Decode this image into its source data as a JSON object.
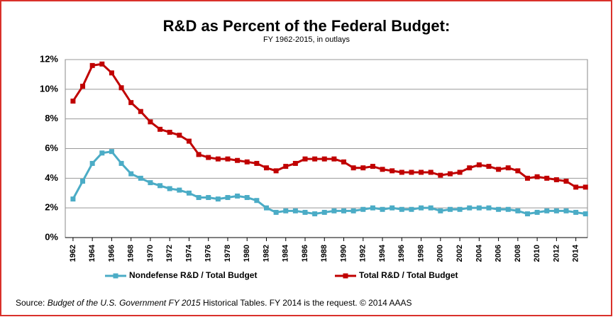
{
  "chart_data": {
    "type": "line",
    "title": "R&D as Percent of the Federal Budget:",
    "subtitle": "FY 1962-2015, in outlays",
    "source": {
      "prefix": "Source:",
      "title": "Budget of the U.S. Government FY 2015",
      "suffix": "Historical Tables. FY 2014 is the request. © 2014 AAAS"
    },
    "x": [
      1962,
      1963,
      1964,
      1965,
      1966,
      1967,
      1968,
      1969,
      1970,
      1971,
      1972,
      1973,
      1974,
      1975,
      1976,
      1977,
      1978,
      1979,
      1980,
      1981,
      1982,
      1983,
      1984,
      1985,
      1986,
      1987,
      1988,
      1989,
      1990,
      1991,
      1992,
      1993,
      1994,
      1995,
      1996,
      1997,
      1998,
      1999,
      2000,
      2001,
      2002,
      2003,
      2004,
      2005,
      2006,
      2007,
      2008,
      2009,
      2010,
      2011,
      2012,
      2013,
      2014,
      2015
    ],
    "series": [
      {
        "name": "Nondefense R&D / Total Budget",
        "color": "#4bacc6",
        "values": [
          2.6,
          3.8,
          5.0,
          5.7,
          5.8,
          5.0,
          4.3,
          4.0,
          3.7,
          3.5,
          3.3,
          3.2,
          3.0,
          2.7,
          2.7,
          2.6,
          2.7,
          2.8,
          2.7,
          2.5,
          2.0,
          1.7,
          1.8,
          1.8,
          1.7,
          1.6,
          1.7,
          1.8,
          1.8,
          1.8,
          1.9,
          2.0,
          1.9,
          2.0,
          1.9,
          1.9,
          2.0,
          2.0,
          1.8,
          1.9,
          1.9,
          2.0,
          2.0,
          2.0,
          1.9,
          1.9,
          1.8,
          1.6,
          1.7,
          1.8,
          1.8,
          1.8,
          1.7,
          1.6
        ]
      },
      {
        "name": "Total R&D / Total Budget",
        "color": "#c00000",
        "values": [
          9.2,
          10.2,
          11.6,
          11.7,
          11.1,
          10.1,
          9.1,
          8.5,
          7.8,
          7.3,
          7.1,
          6.9,
          6.5,
          5.6,
          5.4,
          5.3,
          5.3,
          5.2,
          5.1,
          5.0,
          4.7,
          4.5,
          4.8,
          5.0,
          5.3,
          5.3,
          5.3,
          5.3,
          5.1,
          4.7,
          4.7,
          4.8,
          4.6,
          4.5,
          4.4,
          4.4,
          4.4,
          4.4,
          4.2,
          4.3,
          4.4,
          4.7,
          4.9,
          4.8,
          4.6,
          4.7,
          4.5,
          4.0,
          4.1,
          4.0,
          3.9,
          3.8,
          3.4,
          3.4
        ]
      }
    ],
    "xlim": [
      1961.2,
      2015.2
    ],
    "xticks": [
      1962,
      1964,
      1966,
      1968,
      1970,
      1972,
      1974,
      1976,
      1978,
      1980,
      1982,
      1984,
      1986,
      1988,
      1990,
      1992,
      1994,
      1996,
      1998,
      2000,
      2002,
      2004,
      2006,
      2008,
      2010,
      2012,
      2014
    ],
    "ylim": [
      0,
      12
    ],
    "yticks": [
      {
        "value": 0,
        "label": "0%"
      },
      {
        "value": 2,
        "label": "2%"
      },
      {
        "value": 4,
        "label": "4%"
      },
      {
        "value": 6,
        "label": "6%"
      },
      {
        "value": 8,
        "label": "8%"
      },
      {
        "value": 10,
        "label": "10%"
      },
      {
        "value": 12,
        "label": "12%"
      }
    ],
    "grid": true,
    "legend": "bottom"
  }
}
